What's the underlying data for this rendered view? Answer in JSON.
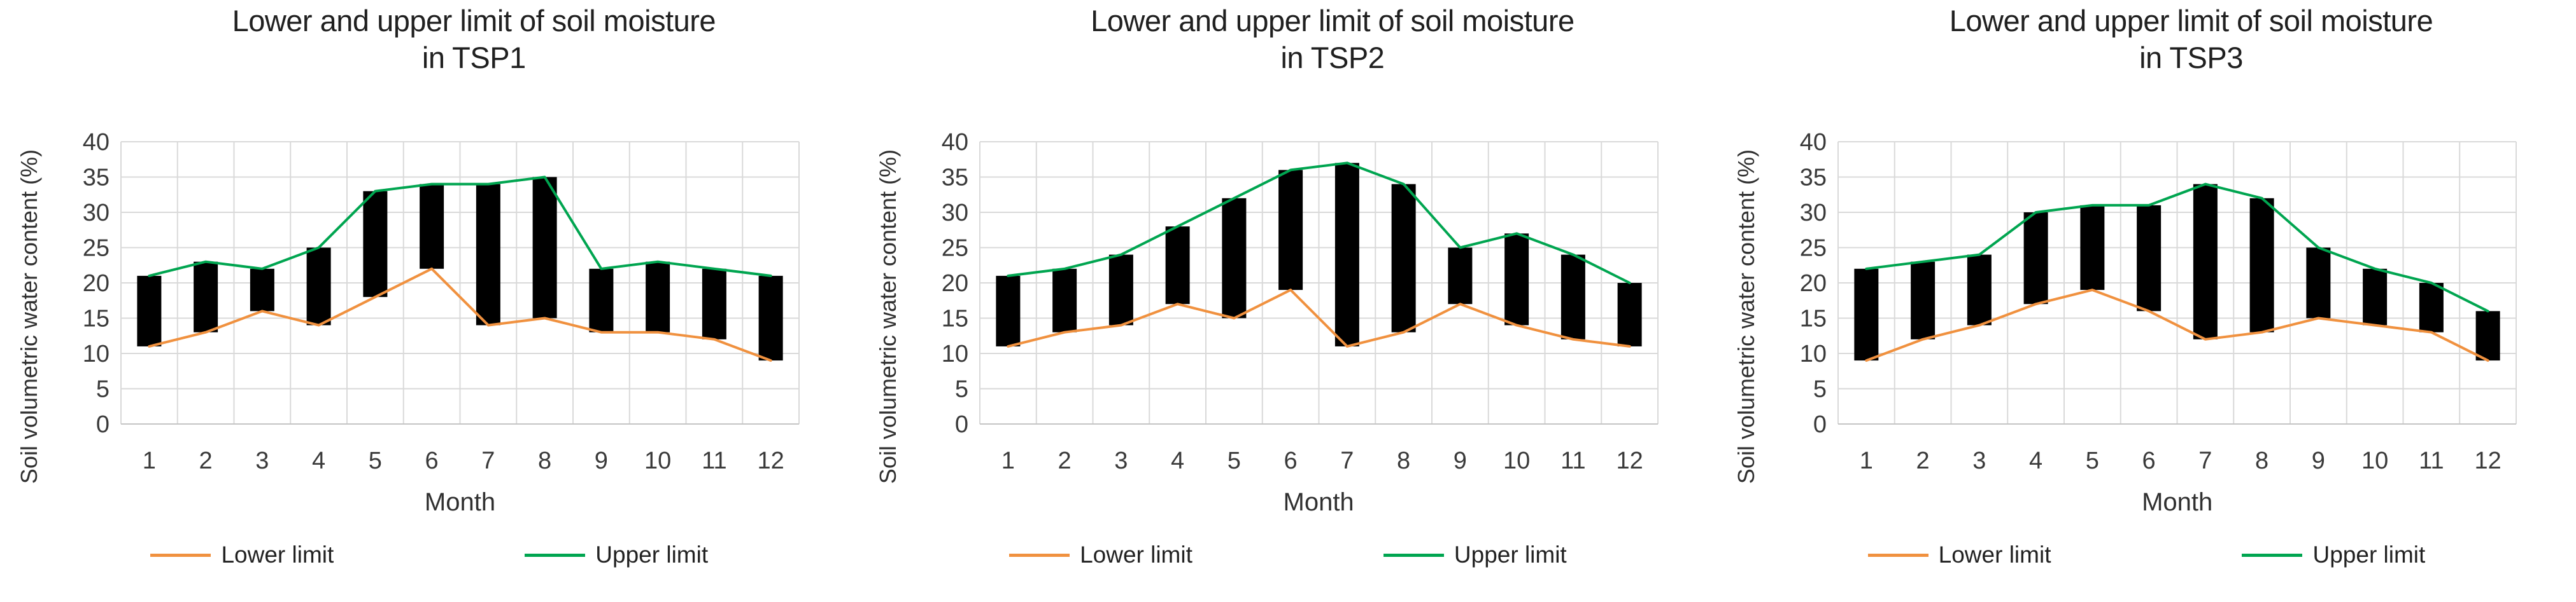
{
  "page": {
    "background": "#FFFFFF"
  },
  "chart_data": [
    {
      "type": "bar",
      "subtype": "high-low range bars with lower/upper lines",
      "title": "Lower and upper limit of soil moisture in TSP1",
      "title_lines": [
        "Lower and upper limit of soil moisture",
        "in TSP1"
      ],
      "xlabel": "Month",
      "ylabel": "Soil volumetric water content (%)",
      "categories": [
        1,
        2,
        3,
        4,
        5,
        6,
        7,
        8,
        9,
        10,
        11,
        12
      ],
      "series": [
        {
          "name": "Lower limit",
          "color": "#F0913F",
          "values": [
            11,
            13,
            16,
            14,
            18,
            22,
            14,
            15,
            13,
            13,
            12,
            9
          ]
        },
        {
          "name": "Upper limit",
          "color": "#00A550",
          "values": [
            21,
            23,
            22,
            25,
            33,
            34,
            34,
            35,
            22,
            23,
            22,
            21
          ]
        }
      ],
      "range_bar_color": "#000000",
      "ylim": [
        0,
        40
      ],
      "ytick_step": 5,
      "yticks": [
        0,
        5,
        10,
        15,
        20,
        25,
        30,
        35,
        40
      ],
      "grid": true,
      "gridline_color": "#d9d9d9",
      "legend_position": "bottom"
    },
    {
      "type": "bar",
      "subtype": "high-low range bars with lower/upper lines",
      "title": "Lower and upper limit of soil moisture in TSP2",
      "title_lines": [
        "Lower and upper limit of soil moisture",
        "in TSP2"
      ],
      "xlabel": "Month",
      "ylabel": "Soil volumetric water content (%)",
      "categories": [
        1,
        2,
        3,
        4,
        5,
        6,
        7,
        8,
        9,
        10,
        11,
        12
      ],
      "series": [
        {
          "name": "Lower limit",
          "color": "#F0913F",
          "values": [
            11,
            13,
            14,
            17,
            15,
            19,
            11,
            13,
            17,
            14,
            12,
            11
          ]
        },
        {
          "name": "Upper limit",
          "color": "#00A550",
          "values": [
            21,
            22,
            24,
            28,
            32,
            36,
            37,
            34,
            25,
            27,
            24,
            20
          ]
        }
      ],
      "range_bar_color": "#000000",
      "ylim": [
        0,
        40
      ],
      "ytick_step": 5,
      "yticks": [
        0,
        5,
        10,
        15,
        20,
        25,
        30,
        35,
        40
      ],
      "grid": true,
      "gridline_color": "#d9d9d9",
      "legend_position": "bottom"
    },
    {
      "type": "bar",
      "subtype": "high-low range bars with lower/upper lines",
      "title": "Lower and upper limit of soil moisture in TSP3",
      "title_lines": [
        "Lower and upper limit of soil moisture",
        "in TSP3"
      ],
      "xlabel": "Month",
      "ylabel": "Soil volumetric water content (%)",
      "categories": [
        1,
        2,
        3,
        4,
        5,
        6,
        7,
        8,
        9,
        10,
        11,
        12
      ],
      "series": [
        {
          "name": "Lower limit",
          "color": "#F0913F",
          "values": [
            9,
            12,
            14,
            17,
            19,
            16,
            12,
            13,
            15,
            14,
            13,
            9
          ]
        },
        {
          "name": "Upper limit",
          "color": "#00A550",
          "values": [
            22,
            23,
            24,
            30,
            31,
            31,
            34,
            32,
            25,
            22,
            20,
            16
          ]
        }
      ],
      "range_bar_color": "#000000",
      "ylim": [
        0,
        40
      ],
      "ytick_step": 5,
      "yticks": [
        0,
        5,
        10,
        15,
        20,
        25,
        30,
        35,
        40
      ],
      "grid": true,
      "gridline_color": "#d9d9d9",
      "legend_position": "bottom"
    }
  ]
}
